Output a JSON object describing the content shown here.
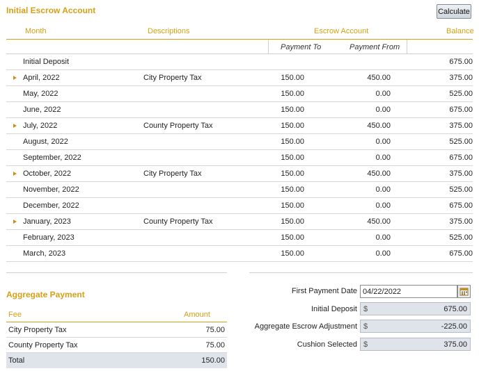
{
  "title": "Initial Escrow Account",
  "calculate_label": "Calculate",
  "columns": {
    "month": "Month",
    "descriptions": "Descriptions",
    "escrow_account": "Escrow Account",
    "balance": "Balance",
    "payment_to": "Payment To",
    "payment_from": "Payment From"
  },
  "rows": [
    {
      "month": "Initial Deposit",
      "description": "",
      "payment_to": "",
      "payment_from": "",
      "balance": "675.00",
      "marker": false
    },
    {
      "month": "April, 2022",
      "description": "City Property Tax",
      "payment_to": "150.00",
      "payment_from": "450.00",
      "balance": "375.00",
      "marker": true
    },
    {
      "month": "May, 2022",
      "description": "",
      "payment_to": "150.00",
      "payment_from": "0.00",
      "balance": "525.00",
      "marker": false
    },
    {
      "month": "June, 2022",
      "description": "",
      "payment_to": "150.00",
      "payment_from": "0.00",
      "balance": "675.00",
      "marker": false
    },
    {
      "month": "July, 2022",
      "description": "County Property Tax",
      "payment_to": "150.00",
      "payment_from": "450.00",
      "balance": "375.00",
      "marker": true
    },
    {
      "month": "August, 2022",
      "description": "",
      "payment_to": "150.00",
      "payment_from": "0.00",
      "balance": "525.00",
      "marker": false
    },
    {
      "month": "September, 2022",
      "description": "",
      "payment_to": "150.00",
      "payment_from": "0.00",
      "balance": "675.00",
      "marker": false
    },
    {
      "month": "October, 2022",
      "description": "City Property Tax",
      "payment_to": "150.00",
      "payment_from": "450.00",
      "balance": "375.00",
      "marker": true
    },
    {
      "month": "November, 2022",
      "description": "",
      "payment_to": "150.00",
      "payment_from": "0.00",
      "balance": "525.00",
      "marker": false
    },
    {
      "month": "December, 2022",
      "description": "",
      "payment_to": "150.00",
      "payment_from": "0.00",
      "balance": "675.00",
      "marker": false
    },
    {
      "month": "January, 2023",
      "description": "County Property Tax",
      "payment_to": "150.00",
      "payment_from": "450.00",
      "balance": "375.00",
      "marker": true
    },
    {
      "month": "February, 2023",
      "description": "",
      "payment_to": "150.00",
      "payment_from": "0.00",
      "balance": "525.00",
      "marker": false
    },
    {
      "month": "March, 2023",
      "description": "",
      "payment_to": "150.00",
      "payment_from": "0.00",
      "balance": "675.00",
      "marker": false
    }
  ],
  "aggregate": {
    "title": "Aggregate Payment",
    "fee_header": "Fee",
    "amount_header": "Amount",
    "rows": [
      {
        "fee": "City Property Tax",
        "amount": "75.00"
      },
      {
        "fee": "County Property Tax",
        "amount": "75.00"
      }
    ],
    "total_label": "Total",
    "total_amount": "150.00"
  },
  "summary": {
    "first_payment_label": "First Payment Date",
    "first_payment_value": "04/22/2022",
    "initial_deposit_label": "Initial Deposit",
    "initial_deposit_value": "675.00",
    "adjustment_label": "Aggregate Escrow Adjustment",
    "adjustment_value": "-225.00",
    "cushion_label": "Cushion Selected",
    "cushion_value": "375.00",
    "currency_symbol": "$"
  },
  "colors": {
    "accent": "#d4a017",
    "marker": "#d48a17",
    "readonly_bg": "#dfe3ea"
  },
  "icons": {
    "row_marker": "caret-right-icon",
    "date_picker": "calendar-icon"
  }
}
